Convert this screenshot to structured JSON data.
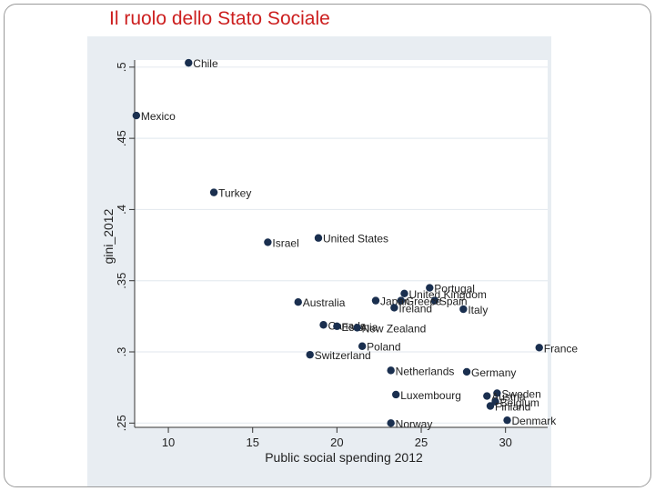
{
  "slide": {
    "title": "Il ruolo dello Stato Sociale"
  },
  "chart_data": {
    "type": "scatter",
    "title": "",
    "xlabel": "Public social spending 2012",
    "ylabel": "gini_2012",
    "xlim": [
      8,
      32.5
    ],
    "ylim": [
      0.247,
      0.505
    ],
    "xticks": [
      10,
      15,
      20,
      25,
      30
    ],
    "yticks": [
      0.25,
      0.3,
      0.35,
      0.4,
      0.45,
      0.5
    ],
    "xtick_labels": [
      "10",
      "15",
      "20",
      "25",
      "30"
    ],
    "ytick_labels": [
      ".25",
      ".3",
      ".35",
      ".4",
      ".45",
      ".5"
    ],
    "grid": true,
    "marker_color": "#1a2f4f",
    "points": [
      {
        "label": "Chile",
        "x": 11.2,
        "y": 0.503
      },
      {
        "label": "Mexico",
        "x": 8.1,
        "y": 0.466
      },
      {
        "label": "Turkey",
        "x": 12.7,
        "y": 0.412
      },
      {
        "label": "Israel",
        "x": 15.9,
        "y": 0.377
      },
      {
        "label": "United States",
        "x": 18.9,
        "y": 0.38
      },
      {
        "label": "Portugal",
        "x": 25.5,
        "y": 0.345
      },
      {
        "label": "United Kingdom",
        "x": 24.0,
        "y": 0.341
      },
      {
        "label": "Spain",
        "x": 25.8,
        "y": 0.336
      },
      {
        "label": "Greece",
        "x": 23.8,
        "y": 0.336
      },
      {
        "label": "Japan",
        "x": 22.3,
        "y": 0.336
      },
      {
        "label": "Ireland",
        "x": 23.4,
        "y": 0.331
      },
      {
        "label": "Italy",
        "x": 27.5,
        "y": 0.33
      },
      {
        "label": "Australia",
        "x": 17.7,
        "y": 0.335
      },
      {
        "label": "Canada",
        "x": 19.2,
        "y": 0.319
      },
      {
        "label": "Estonia",
        "x": 20.0,
        "y": 0.318
      },
      {
        "label": "New Zealand",
        "x": 21.2,
        "y": 0.317
      },
      {
        "label": "Poland",
        "x": 21.5,
        "y": 0.304
      },
      {
        "label": "France",
        "x": 32.0,
        "y": 0.303
      },
      {
        "label": "Switzerland",
        "x": 18.4,
        "y": 0.298
      },
      {
        "label": "Netherlands",
        "x": 23.2,
        "y": 0.287
      },
      {
        "label": "Germany",
        "x": 27.7,
        "y": 0.286
      },
      {
        "label": "Luxembourg",
        "x": 23.5,
        "y": 0.27
      },
      {
        "label": "Sweden",
        "x": 29.5,
        "y": 0.271
      },
      {
        "label": "Austria",
        "x": 28.9,
        "y": 0.269
      },
      {
        "label": "Belgium",
        "x": 29.4,
        "y": 0.265
      },
      {
        "label": "Finland",
        "x": 29.1,
        "y": 0.262
      },
      {
        "label": "Denmark",
        "x": 30.1,
        "y": 0.252
      },
      {
        "label": "Norway",
        "x": 23.2,
        "y": 0.25
      }
    ]
  }
}
